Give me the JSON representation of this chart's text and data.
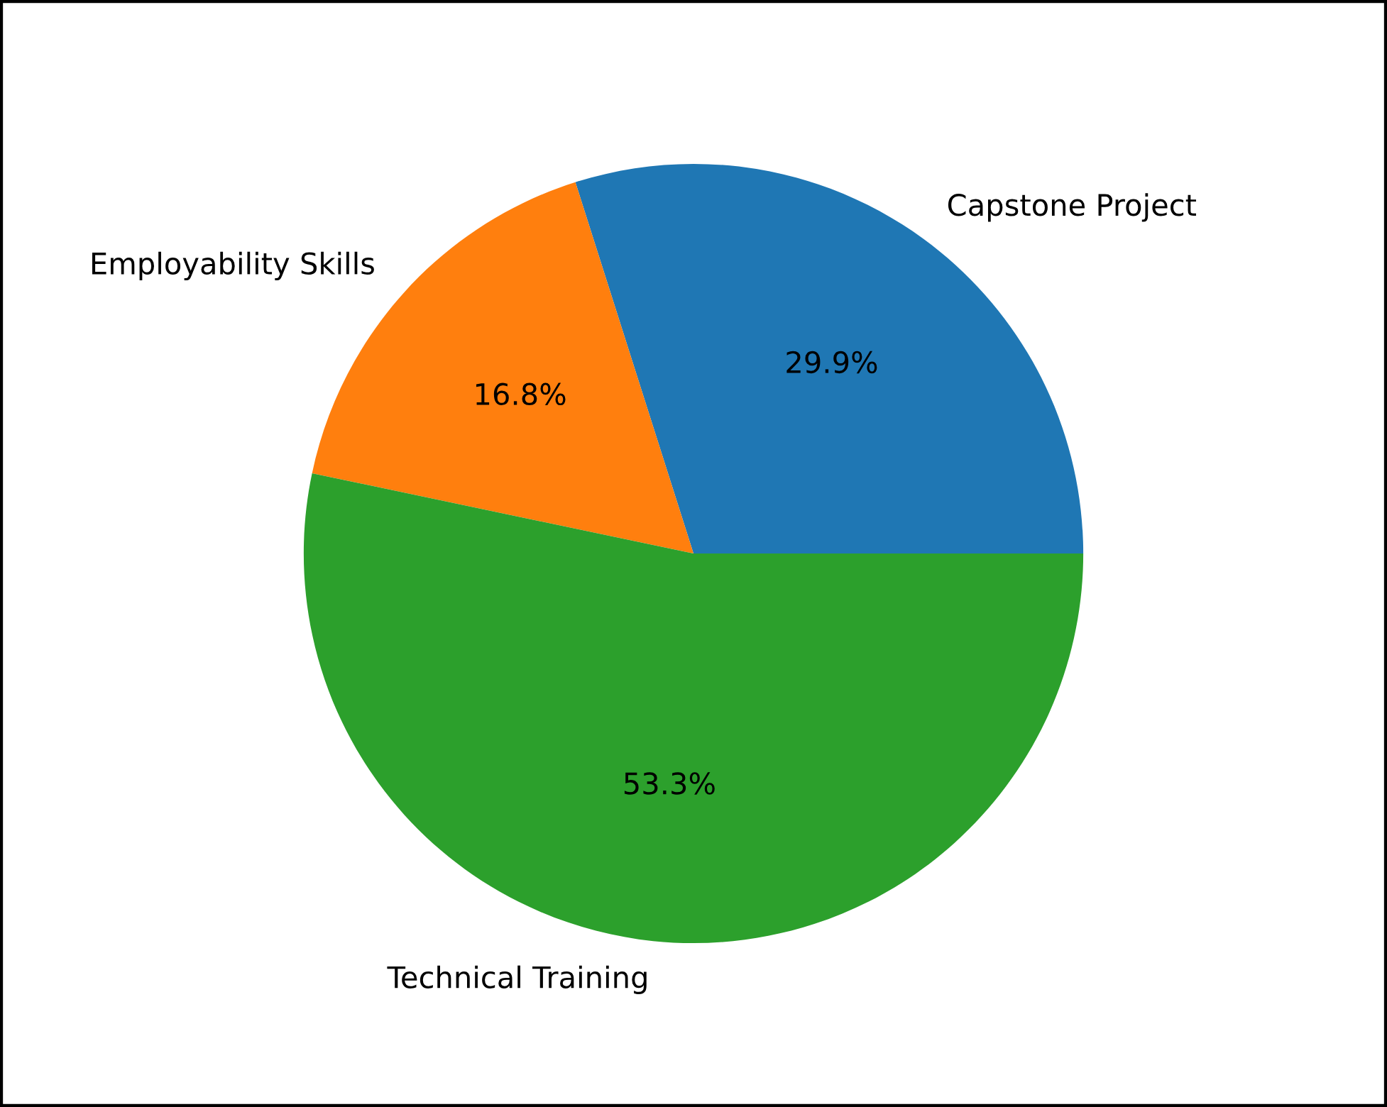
{
  "chart_data": {
    "type": "pie",
    "categories": [
      "Capstone Project",
      "Employability Skills",
      "Technical Training"
    ],
    "values": [
      29.9,
      16.8,
      53.3
    ],
    "colors": [
      "#1f77b4",
      "#ff7f0e",
      "#2ca02c"
    ],
    "value_labels": [
      "29.9%",
      "16.8%",
      "53.3%"
    ],
    "legend": false
  }
}
